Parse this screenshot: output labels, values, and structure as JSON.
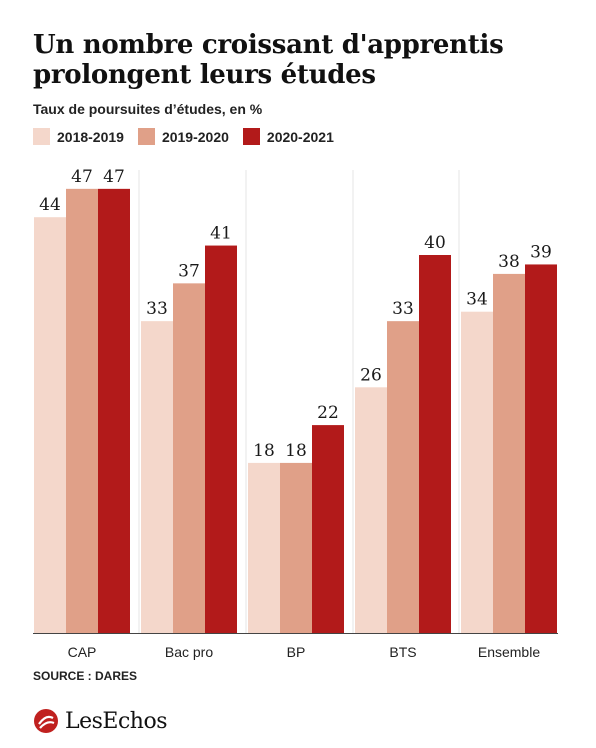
{
  "header": {
    "title": "Un nombre croissant d'apprentis prolongent leurs études",
    "subtitle": "Taux de poursuites d’études, en %"
  },
  "colors": {
    "2018-2019": "#f4d7cb",
    "2019-2020": "#e0a088",
    "2020-2021": "#b21a1a",
    "axis": "#444444",
    "logo": "#c0211f"
  },
  "chart_data": {
    "type": "bar",
    "title": "Un nombre croissant d'apprentis prolongent leurs études",
    "subtitle": "Taux de poursuites d’études, en %",
    "categories": [
      "CAP",
      "Bac pro",
      "BP",
      "BTS",
      "Ensemble"
    ],
    "series": [
      {
        "name": "2018-2019",
        "values": [
          44,
          33,
          18,
          26,
          34
        ]
      },
      {
        "name": "2019-2020",
        "values": [
          47,
          37,
          18,
          33,
          38
        ]
      },
      {
        "name": "2020-2021",
        "values": [
          47,
          41,
          22,
          40,
          39
        ]
      }
    ],
    "ylim": [
      0,
      47
    ],
    "legend": "top-left",
    "grid": false
  },
  "footer": {
    "source": "SOURCE : DARES",
    "logo_text": "LesEchos",
    "logo_icon": "les-echos-icon"
  }
}
